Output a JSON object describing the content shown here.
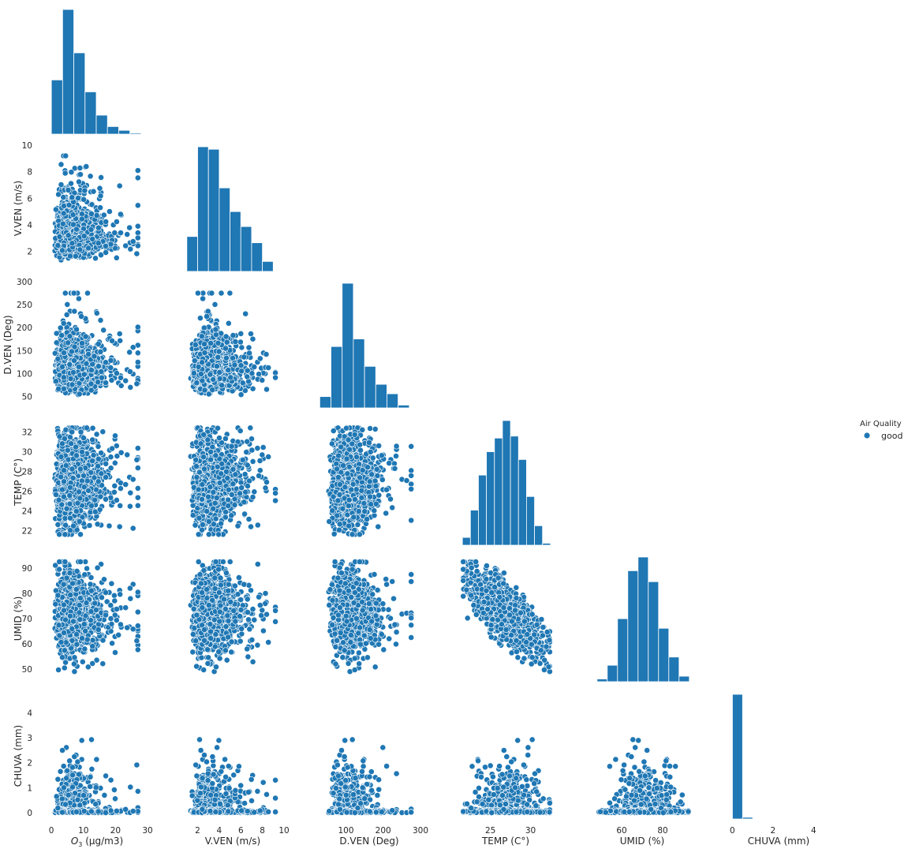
{
  "chart_data": {
    "type": "scatter",
    "kind": "pairplot-corner",
    "color": "#1f77b4",
    "grid": false,
    "legend": {
      "title": "Air Quality",
      "entries": [
        "good"
      ],
      "placement": "center-right"
    },
    "variables": [
      {
        "key": "o3",
        "label_prefix": "O",
        "label_sub": "3",
        "label_suffix": " (µg/m3)",
        "ticks": [
          0,
          10,
          20,
          30
        ],
        "range": [
          -2,
          30
        ]
      },
      {
        "key": "vven",
        "label": "V.VEN (m/s)",
        "ticks": [
          2,
          4,
          6,
          8,
          10
        ],
        "range": [
          0.5,
          10
        ]
      },
      {
        "key": "dven",
        "label": "D.VEN (Deg)",
        "ticks": [
          50,
          100,
          150,
          200,
          250,
          300
        ],
        "range": [
          25,
          300
        ]
      },
      {
        "key": "temp",
        "label": "TEMP (C°)",
        "ticks": [
          22,
          24,
          26,
          28,
          30,
          32
        ],
        "range": [
          20.5,
          33.3
        ]
      },
      {
        "key": "umid",
        "label": "UMID (%)",
        "ticks": [
          50,
          60,
          70,
          80,
          90
        ],
        "range": [
          45,
          95
        ]
      },
      {
        "key": "chuva",
        "label": "CHUVA (mm)",
        "ticks": [
          0,
          1,
          2,
          3,
          4
        ],
        "range": [
          -0.25,
          4.8
        ]
      }
    ],
    "x_axis_ticks": {
      "o3": [
        0,
        10,
        20,
        30
      ],
      "vven": [
        2,
        4,
        6,
        8,
        10
      ],
      "dven": [
        100,
        200,
        300
      ],
      "temp": [
        25,
        30
      ],
      "umid": [
        60,
        80
      ],
      "chuva": [
        0,
        2,
        4
      ]
    },
    "histograms": {
      "o3": {
        "edges": [
          0,
          3.5,
          7,
          10.5,
          14,
          17.5,
          21,
          24.5,
          28
        ],
        "counts": [
          100,
          230,
          150,
          78,
          35,
          14,
          7,
          2
        ]
      },
      "vven": {
        "edges": [
          1,
          2,
          3,
          4,
          5,
          6,
          7,
          8,
          9
        ],
        "counts": [
          28,
          100,
          98,
          67,
          48,
          36,
          23,
          8
        ]
      },
      "dven": {
        "edges": [
          30,
          60,
          90,
          120,
          150,
          180,
          210,
          240,
          270
        ],
        "counts": [
          12,
          65,
          132,
          73,
          44,
          25,
          15,
          3
        ]
      },
      "temp": {
        "edges": [
          21.5,
          22.5,
          23.5,
          24.5,
          25.5,
          26.5,
          27.5,
          28.5,
          29.5,
          30.5,
          31.5,
          32.5
        ],
        "counts": [
          4,
          18,
          36,
          48,
          55,
          64,
          56,
          44,
          25,
          10,
          1
        ]
      },
      "umid": {
        "edges": [
          48,
          53,
          58,
          63,
          68,
          73,
          78,
          83,
          88,
          93
        ],
        "counts": [
          2,
          12,
          46,
          81,
          91,
          73,
          39,
          18,
          4
        ]
      },
      "chuva": {
        "edges": [
          0,
          0.5,
          1.0
        ],
        "counts": [
          150,
          2
        ]
      }
    }
  }
}
